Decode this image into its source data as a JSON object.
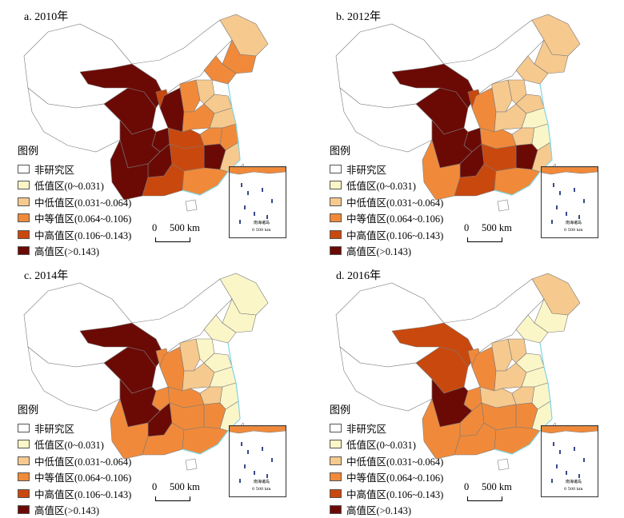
{
  "legend": {
    "title": "图例",
    "items": [
      {
        "label": "非研究区",
        "color": "#ffffff"
      },
      {
        "label": "低值区(0~0.031)",
        "color": "#fbf6c8"
      },
      {
        "label": "中低值区(0.031~0.064)",
        "color": "#f6c98e"
      },
      {
        "label": "中等值区(0.064~0.106)",
        "color": "#f08a3a"
      },
      {
        "label": "中高值区(0.106~0.143)",
        "color": "#c9480e"
      },
      {
        "label": "高值区(>0.143)",
        "color": "#6b0a05"
      }
    ]
  },
  "scale_bar": {
    "zero": "0",
    "distance": "500 km"
  },
  "inset_label": "南海诸岛",
  "inset_scale": "0   500 km",
  "panels": [
    {
      "title": "a. 2010年",
      "regions": {
        "xinjiang": 0,
        "xizang": 0,
        "qinghai": 5,
        "gansu": 5,
        "neimeng": 0,
        "sichuan": 5,
        "yunnan": 5,
        "guizhou": 5,
        "chongqing": 5,
        "shaanxi": 5,
        "ningxia": 4,
        "shanxi": 3,
        "hebei": 2,
        "henan": 3,
        "hubei": 4,
        "hunan": 4,
        "jiangxi": 5,
        "guangxi": 4,
        "guangdong": 3,
        "fujian": 2,
        "zhejiang": 3,
        "anhui": 3,
        "jiangsu": 2,
        "shandong": 2,
        "liaoning": 3,
        "jilin": 3,
        "heilongjiang": 2,
        "hainan": 0,
        "taiwan": 0
      }
    },
    {
      "title": "b. 2012年",
      "regions": {
        "xinjiang": 0,
        "xizang": 0,
        "qinghai": 5,
        "gansu": 5,
        "neimeng": 0,
        "sichuan": 5,
        "yunnan": 3,
        "guizhou": 5,
        "chongqing": 5,
        "shaanxi": 3,
        "ningxia": 4,
        "shanxi": 2,
        "hebei": 2,
        "henan": 2,
        "hubei": 3,
        "hunan": 4,
        "jiangxi": 5,
        "guangxi": 4,
        "guangdong": 3,
        "fujian": 2,
        "zhejiang": 1,
        "anhui": 2,
        "jiangsu": 1,
        "shandong": 2,
        "liaoning": 2,
        "jilin": 2,
        "heilongjiang": 2,
        "hainan": 0,
        "taiwan": 0
      }
    },
    {
      "title": "c. 2014年",
      "regions": {
        "xinjiang": 0,
        "xizang": 0,
        "qinghai": 5,
        "gansu": 5,
        "neimeng": 0,
        "sichuan": 5,
        "yunnan": 3,
        "guizhou": 5,
        "chongqing": 3,
        "shaanxi": 3,
        "ningxia": 3,
        "shanxi": 2,
        "hebei": 1,
        "henan": 2,
        "hubei": 3,
        "hunan": 3,
        "jiangxi": 3,
        "guangxi": 3,
        "guangdong": 3,
        "fujian": 1,
        "zhejiang": 1,
        "anhui": 2,
        "jiangsu": 1,
        "shandong": 1,
        "liaoning": 1,
        "jilin": 1,
        "heilongjiang": 1,
        "hainan": 0,
        "taiwan": 0
      }
    },
    {
      "title": "d. 2016年",
      "regions": {
        "xinjiang": 0,
        "xizang": 0,
        "qinghai": 4,
        "gansu": 4,
        "neimeng": 0,
        "sichuan": 5,
        "yunnan": 3,
        "guizhou": 3,
        "chongqing": 3,
        "shaanxi": 3,
        "ningxia": 3,
        "shanxi": 2,
        "hebei": 2,
        "henan": 2,
        "hubei": 2,
        "hunan": 3,
        "jiangxi": 3,
        "guangxi": 3,
        "guangdong": 3,
        "fujian": 1,
        "zhejiang": 1,
        "anhui": 2,
        "jiangsu": 1,
        "shandong": 1,
        "liaoning": 1,
        "jilin": 1,
        "heilongjiang": 2,
        "hainan": 0,
        "taiwan": 0
      }
    }
  ]
}
